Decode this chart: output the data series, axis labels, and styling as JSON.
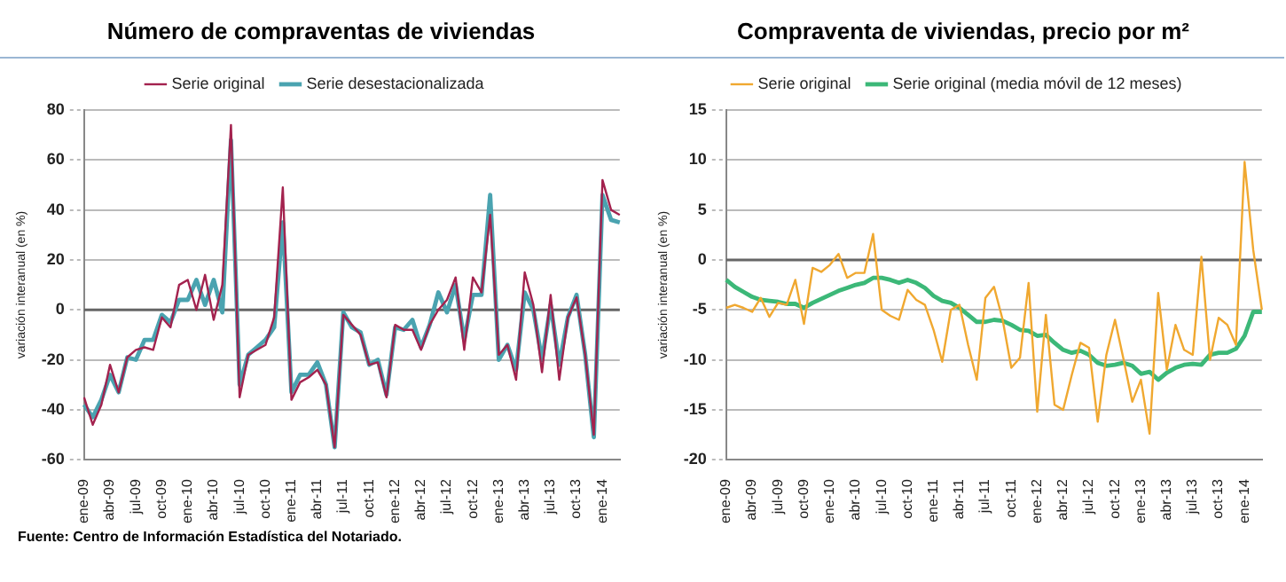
{
  "chart_data": [
    {
      "type": "line",
      "title": "Número de compraventas de viviendas",
      "ylabel": "variación interanual (en %)",
      "categories": [
        "ene-09",
        null,
        null,
        "abr-09",
        null,
        null,
        "jul-09",
        null,
        null,
        "oct-09",
        null,
        null,
        "ene-10",
        null,
        null,
        "abr-10",
        null,
        null,
        "jul-10",
        null,
        null,
        "oct-10",
        null,
        null,
        "ene-11",
        null,
        null,
        "abr-11",
        null,
        null,
        "jul-11",
        null,
        null,
        "oct-11",
        null,
        null,
        "ene-12",
        null,
        null,
        "abr-12",
        null,
        null,
        "jul-12",
        null,
        null,
        "oct-12",
        null,
        null,
        "ene-13",
        null,
        null,
        "abr-13",
        null,
        null,
        "jul-13",
        null,
        null,
        "oct-13",
        null,
        null,
        "ene-14",
        null,
        null
      ],
      "series": [
        {
          "name": "Serie original",
          "color": "#a3224e",
          "values": [
            -35,
            -46,
            -38,
            -22,
            -33,
            -19,
            -16,
            -15,
            -16,
            -3,
            -7,
            10,
            12,
            0,
            14,
            -4,
            10,
            74,
            -35,
            -18,
            -16,
            -14,
            -3,
            49,
            -36,
            -29,
            -27,
            -24,
            -30,
            -55,
            -2,
            -6,
            -10,
            -22,
            -21,
            -35,
            -6,
            -8,
            -8,
            -16,
            -6,
            0,
            4,
            13,
            -16,
            13,
            7,
            38,
            -18,
            -14,
            -28,
            15,
            2,
            -25,
            6,
            -28,
            -3,
            5,
            -18,
            -50,
            52,
            40,
            38
          ]
        },
        {
          "name": "Serie desestacionalizada",
          "color": "#4aa3b0",
          "values": [
            -38,
            -43,
            -36,
            -26,
            -33,
            -19,
            -20,
            -12,
            -12,
            -2,
            -5,
            4,
            4,
            12,
            2,
            12,
            -1,
            68,
            -30,
            -18,
            -15,
            -12,
            -7,
            35,
            -33,
            -26,
            -26,
            -21,
            -30,
            -55,
            -1,
            -7,
            -9,
            -22,
            -20,
            -34,
            -7,
            -8,
            -4,
            -15,
            -6,
            7,
            -1,
            10,
            -12,
            6,
            6,
            46,
            -20,
            -14,
            -24,
            7,
            0,
            -20,
            2,
            -22,
            -3,
            6,
            -18,
            -51,
            46,
            36,
            35
          ]
        }
      ],
      "ylim": [
        -60,
        80
      ],
      "yticks": [
        -60,
        -40,
        -20,
        0,
        20,
        40,
        60,
        80
      ],
      "grid": "y",
      "legend": "top",
      "marker": "none",
      "ref_lines": [
        {
          "axis": "y",
          "value": 0
        }
      ],
      "annotations": [
        "Fuente: Centro de Información Estadística del Notariado."
      ]
    },
    {
      "type": "line",
      "title": "Compraventa de viviendas, precio por m²",
      "ylabel": "variación interanual (en %)",
      "categories": [
        "ene-09",
        null,
        null,
        "abr-09",
        null,
        null,
        "jul-09",
        null,
        null,
        "oct-09",
        null,
        null,
        "ene-10",
        null,
        null,
        "abr-10",
        null,
        null,
        "jul-10",
        null,
        null,
        "oct-10",
        null,
        null,
        "ene-11",
        null,
        null,
        "abr-11",
        null,
        null,
        "jul-11",
        null,
        null,
        "oct-11",
        null,
        null,
        "ene-12",
        null,
        null,
        "abr-12",
        null,
        null,
        "jul-12",
        null,
        null,
        "oct-12",
        null,
        null,
        "ene-13",
        null,
        null,
        "abr-13",
        null,
        null,
        "jul-13",
        null,
        null,
        "oct-13",
        null,
        null,
        "ene-14",
        null,
        null
      ],
      "series": [
        {
          "name": "Serie original",
          "color": "#f0a830",
          "values": [
            -4.8,
            -4.5,
            -4.8,
            -5.2,
            -3.8,
            -5.7,
            -4.3,
            -4.5,
            -2,
            -6.4,
            -0.8,
            -1.2,
            -0.5,
            0.6,
            -1.8,
            -1.3,
            -1.3,
            2.6,
            -5,
            -5.6,
            -6,
            -3,
            -4,
            -4.5,
            -7,
            -10.2,
            -5,
            -4.5,
            -8.5,
            -12,
            -3.8,
            -2.7,
            -6,
            -10.8,
            -9.8,
            -2.3,
            -15.2,
            -5.5,
            -14.5,
            -15,
            -11.5,
            -8.3,
            -8.8,
            -16.2,
            -9.5,
            -6,
            -10,
            -14.2,
            -12,
            -17.4,
            -3.3,
            -11,
            -6.5,
            -9,
            -9.5,
            0.3,
            -10,
            -5.8,
            -6.5,
            -8.5,
            9.8,
            1,
            -5
          ]
        },
        {
          "name": "Serie original (media móvil de 12 meses)",
          "color": "#3cb878",
          "values": [
            -2,
            -2.7,
            -3.2,
            -3.7,
            -4,
            -4.1,
            -4.2,
            -4.4,
            -4.4,
            -4.8,
            -4.3,
            -3.9,
            -3.5,
            -3.1,
            -2.8,
            -2.5,
            -2.3,
            -1.8,
            -1.8,
            -2,
            -2.3,
            -2,
            -2.3,
            -2.8,
            -3.6,
            -4.1,
            -4.3,
            -4.8,
            -5.5,
            -6.2,
            -6.2,
            -6,
            -6.1,
            -6.5,
            -7,
            -7.1,
            -7.6,
            -7.5,
            -8.3,
            -9,
            -9.3,
            -9.1,
            -9.5,
            -10.3,
            -10.6,
            -10.5,
            -10.3,
            -10.6,
            -11.4,
            -11.2,
            -12,
            -11.3,
            -10.8,
            -10.5,
            -10.4,
            -10.5,
            -9.5,
            -9.3,
            -9.3,
            -8.9,
            -7.6,
            -5.2,
            -5.2
          ]
        }
      ],
      "ylim": [
        -20,
        15
      ],
      "yticks": [
        -20,
        -15,
        -10,
        -5,
        0,
        5,
        10,
        15
      ],
      "grid": "y",
      "legend": "top",
      "marker": "none",
      "ref_lines": [
        {
          "axis": "y",
          "value": 0
        }
      ]
    }
  ]
}
